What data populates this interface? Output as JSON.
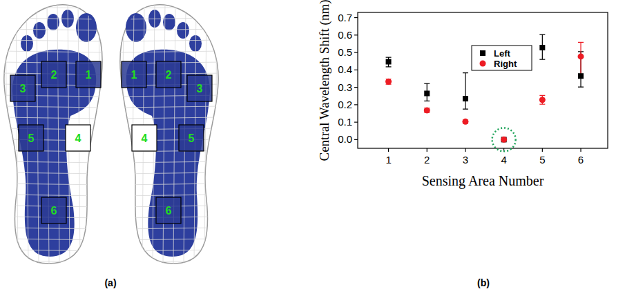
{
  "panel_labels": [
    "(a)",
    "(b)"
  ],
  "diagram": {
    "feet": [
      {
        "areas": [
          "1",
          "2",
          "3",
          "4",
          "5",
          "6"
        ]
      },
      {
        "areas": [
          "1",
          "2",
          "3",
          "4",
          "5",
          "6"
        ]
      }
    ]
  },
  "chart_data": {
    "type": "scatter",
    "x_label": "Sensing Area Number",
    "y_label": "Central Wavelength Shift (nm)",
    "x": [
      1,
      2,
      3,
      4,
      5,
      6
    ],
    "xlim": [
      0.2,
      6.7
    ],
    "xticks": [
      1,
      2,
      3,
      4,
      5,
      6
    ],
    "ylim": [
      -0.05,
      0.73
    ],
    "yticks": [
      {
        "value": 0,
        "label": "0.0"
      },
      0.1,
      0.2,
      0.3,
      0.4,
      0.5,
      0.6,
      0.7
    ],
    "grid": false,
    "legend": "top",
    "series": [
      {
        "name": "Left",
        "color": "#000000",
        "marker": "square",
        "values": [
          0.447,
          0.265,
          0.235,
          0,
          0.528,
          0.365
        ],
        "error_low": [
          0.029,
          0.043,
          0.06,
          0,
          0.068,
          0.063
        ],
        "error_high": [
          0.025,
          0.057,
          0.148,
          0,
          0.075,
          0.14
        ]
      },
      {
        "name": "Right",
        "color": "#ed1c24",
        "marker": "circle",
        "values": [
          0.333,
          0.168,
          0.103,
          0,
          0.228,
          0.477
        ],
        "error_low": [
          0.015,
          0.013,
          0.01,
          0,
          0.025,
          0.102
        ],
        "error_high": [
          0.015,
          0.013,
          0.01,
          0,
          0.025,
          0.081
        ]
      }
    ]
  }
}
